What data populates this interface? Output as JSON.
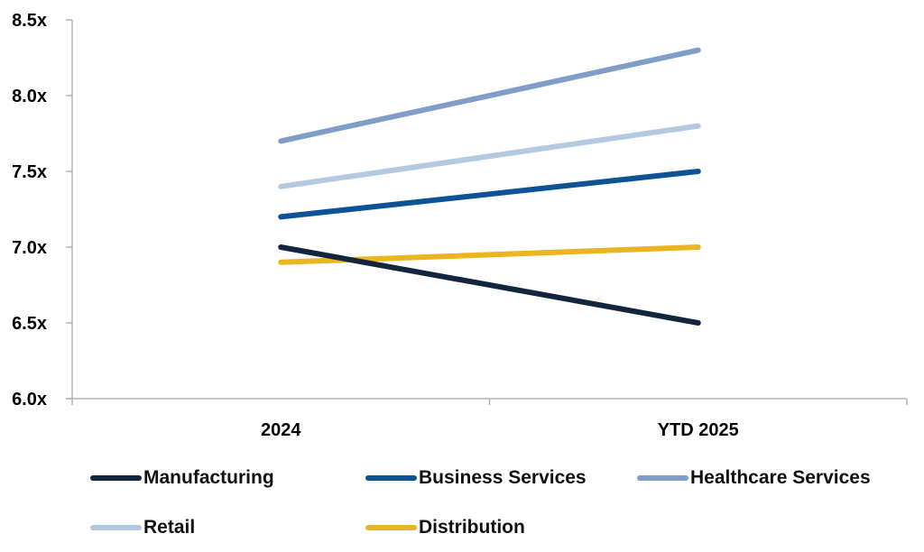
{
  "chart_data": {
    "type": "line",
    "title": "",
    "xlabel": "",
    "ylabel": "",
    "categories": [
      "2024",
      "YTD 2025"
    ],
    "ylim": [
      6.0,
      8.5
    ],
    "yticks": [
      6.0,
      6.5,
      7.0,
      7.5,
      8.0,
      8.5
    ],
    "ytick_labels": [
      "6.0x",
      "6.5x",
      "7.0x",
      "7.5x",
      "8.0x",
      "8.5x"
    ],
    "grid": false,
    "legend_position": "bottom",
    "series": [
      {
        "name": "Manufacturing",
        "values": [
          7.0,
          6.5
        ],
        "color": "#13253d"
      },
      {
        "name": "Business Services",
        "values": [
          7.2,
          7.5
        ],
        "color": "#0b5394"
      },
      {
        "name": "Healthcare Services",
        "values": [
          7.7,
          8.3
        ],
        "color": "#7f9dc6"
      },
      {
        "name": "Retail",
        "values": [
          7.4,
          7.8
        ],
        "color": "#b4c8e0"
      },
      {
        "name": "Distribution",
        "values": [
          6.9,
          7.0
        ],
        "color": "#eab520"
      }
    ]
  }
}
